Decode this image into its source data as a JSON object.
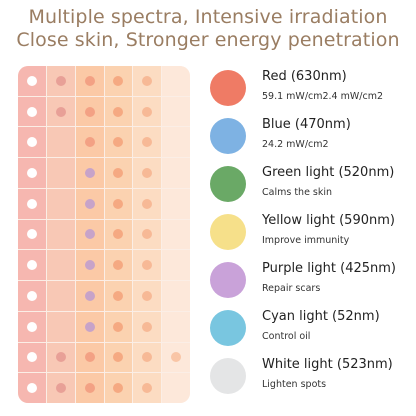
{
  "header": {
    "line1": "Multiple spectra, Intensive irradiation",
    "line2": "Close skin, Stronger energy penetration"
  },
  "colors": {
    "heading": "#9a7d62",
    "panel_background": "#fbeee6"
  },
  "panel": {
    "rows": 11,
    "columns": 6,
    "cell_colors": [
      [
        "#f6b7b0",
        "#f8c8b5",
        "#fbc9a6",
        "#fbd2b0",
        "#fcdcc2",
        "#fde8da"
      ],
      [
        "#f6b7b0",
        "#f8c8b5",
        "#fbc9a6",
        "#fbd2b0",
        "#fcdcc2",
        "#fde8da"
      ],
      [
        "#f6b7b0",
        "#f8c8b5",
        "#fbc9a6",
        "#fbd2b0",
        "#fcdcc2",
        "#fde8da"
      ],
      [
        "#f6b7b0",
        "#f8c8b5",
        "#fbc9a6",
        "#fbd2b0",
        "#fcdcc2",
        "#fde8da"
      ],
      [
        "#f6b7b0",
        "#f8c8b5",
        "#fbc9a6",
        "#fbd2b0",
        "#fcdcc2",
        "#fde8da"
      ],
      [
        "#f6b7b0",
        "#f8c8b5",
        "#fbc9a6",
        "#fbd2b0",
        "#fcdcc2",
        "#fde8da"
      ],
      [
        "#f6b7b0",
        "#f8c8b5",
        "#fbc9a6",
        "#fbd2b0",
        "#fcdcc2",
        "#fde8da"
      ],
      [
        "#f6b7b0",
        "#f8c8b5",
        "#fbc9a6",
        "#fbd2b0",
        "#fcdcc2",
        "#fde8da"
      ],
      [
        "#f6b7b0",
        "#f8c8b5",
        "#fbc9a6",
        "#fbd2b0",
        "#fcdcc2",
        "#fde8da"
      ],
      [
        "#f6b7b0",
        "#f8c8b5",
        "#fbc9a6",
        "#fbd2b0",
        "#fcdcc2",
        "#fde8da"
      ],
      [
        "#f6b7b0",
        "#f8c8b5",
        "#fbc9a6",
        "#fbd2b0",
        "#fcdcc2",
        "#fde8da"
      ]
    ],
    "dot_colors": [
      [
        "#ffffff",
        "#e8a097",
        "#f3a184",
        "#f5a982",
        "#f7b996",
        null
      ],
      [
        "#ffffff",
        "#e8a097",
        "#f3a184",
        "#f5a982",
        "#f7b996",
        null
      ],
      [
        "#ffffff",
        null,
        "#f3a184",
        "#f5a982",
        "#f7b996",
        null
      ],
      [
        "#ffffff",
        null,
        "#c7a3c9",
        "#f5a982",
        "#f7b996",
        null
      ],
      [
        "#ffffff",
        null,
        "#c7a3c9",
        "#f5a982",
        "#f7b996",
        null
      ],
      [
        "#ffffff",
        null,
        "#c7a3c9",
        "#f5a982",
        "#f7b996",
        null
      ],
      [
        "#ffffff",
        null,
        "#c7a3c9",
        "#f5a982",
        "#f7b996",
        null
      ],
      [
        "#ffffff",
        null,
        "#c7a3c9",
        "#f5a982",
        "#f7b996",
        null
      ],
      [
        "#ffffff",
        null,
        "#c7a3c9",
        "#f5a982",
        "#f7b996",
        null
      ],
      [
        "#ffffff",
        "#e8a097",
        "#f3a184",
        "#f5a982",
        "#f7b996",
        "#f9c5a6"
      ],
      [
        "#ffffff",
        "#e8a097",
        "#f3a184",
        "#f5a982",
        "#f7b996",
        null
      ]
    ]
  },
  "legend": [
    {
      "name": "Red (630nm)",
      "desc": "59.1 mW/cm2.4 mW/cm2",
      "color": "#ef7b65"
    },
    {
      "name": "Blue (470nm)",
      "desc": "24.2 mW/cm2",
      "color": "#7eb2e3"
    },
    {
      "name": "Green light (520nm)",
      "desc": "Calms the skin",
      "color": "#6aa966"
    },
    {
      "name": "Yellow light (590nm)",
      "desc": "Improve immunity",
      "color": "#f6e08a"
    },
    {
      "name": "Purple light (425nm)",
      "desc": "Repair scars",
      "color": "#c9a2d9"
    },
    {
      "name": "Cyan light (52nm)",
      "desc": "Control oil",
      "color": "#79c6e0"
    },
    {
      "name": "White light (523nm)",
      "desc": "Lighten spots",
      "color": "#e4e5e6"
    }
  ]
}
